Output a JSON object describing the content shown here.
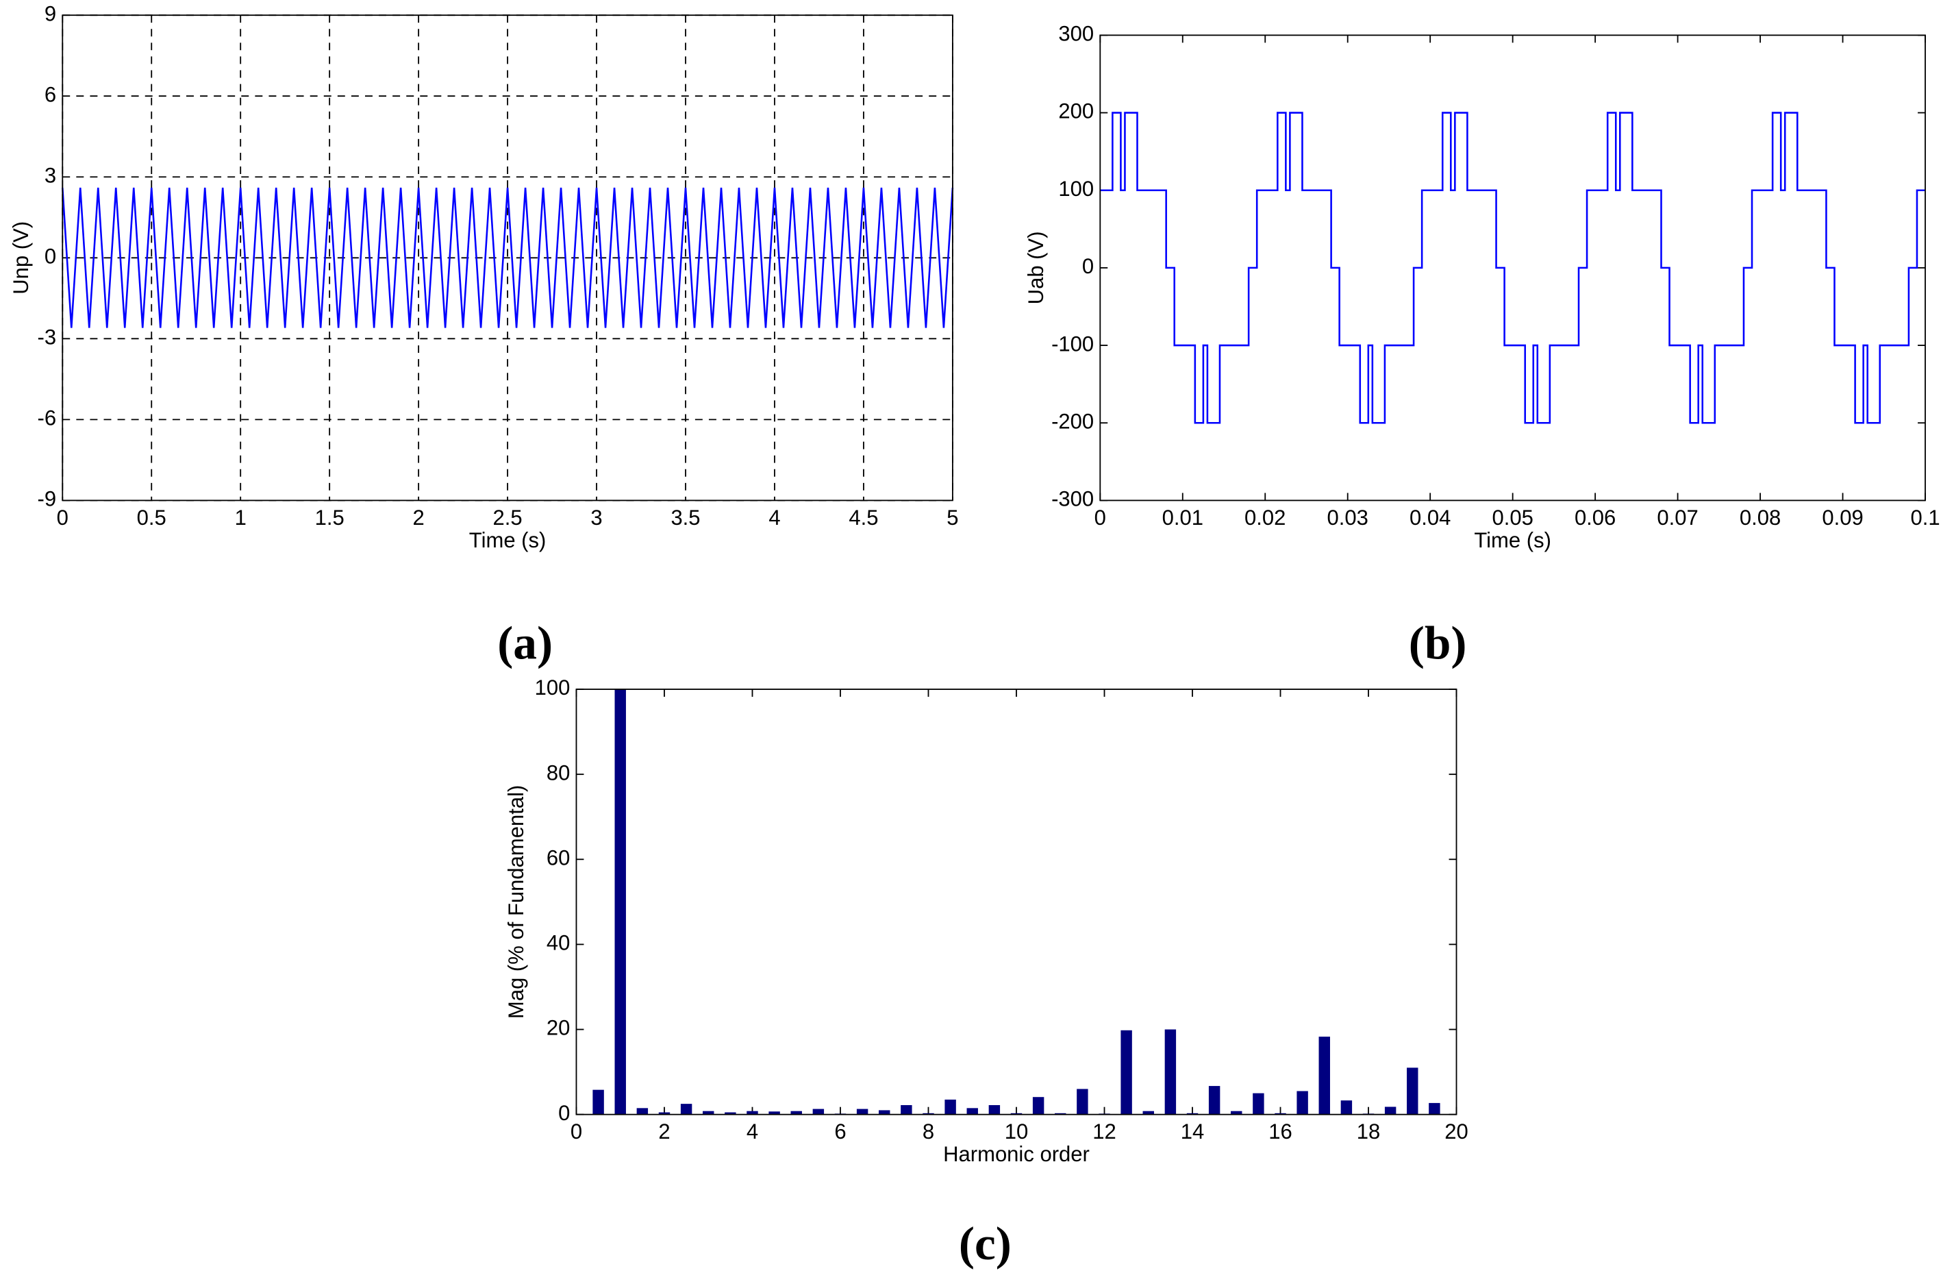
{
  "chart_data": [
    {
      "type": "line",
      "caption": "(a)",
      "xlabel": "Time (s)",
      "ylabel": "Unp (V)",
      "color": "#0000ff",
      "grid": true,
      "xlim": [
        0,
        5
      ],
      "ylim": [
        -9,
        9
      ],
      "xticks": [
        0,
        0.5,
        1,
        1.5,
        2,
        2.5,
        3,
        3.5,
        4,
        4.5,
        5
      ],
      "yticks": [
        -9,
        -6,
        -3,
        0,
        3,
        6,
        9
      ],
      "x": [
        0,
        0.05,
        0.1,
        0.15,
        0.2,
        0.25,
        0.3,
        0.35,
        0.4,
        0.45,
        0.5,
        0.55,
        0.6,
        0.65,
        0.7,
        0.75,
        0.8,
        0.85,
        0.9,
        0.95,
        1,
        1.05,
        1.1,
        1.15,
        1.2,
        1.25,
        1.3,
        1.35,
        1.4,
        1.45,
        1.5,
        1.55,
        1.6,
        1.65,
        1.7,
        1.75,
        1.8,
        1.85,
        1.9,
        1.95,
        2,
        2.05,
        2.1,
        2.15,
        2.2,
        2.25,
        2.3,
        2.35,
        2.4,
        2.45,
        2.5,
        2.55,
        2.6,
        2.65,
        2.7,
        2.75,
        2.8,
        2.85,
        2.9,
        2.95,
        3,
        3.05,
        3.1,
        3.15,
        3.2,
        3.25,
        3.3,
        3.35,
        3.4,
        3.45,
        3.5,
        3.55,
        3.6,
        3.65,
        3.7,
        3.75,
        3.8,
        3.85,
        3.9,
        3.95,
        4,
        4.05,
        4.1,
        4.15,
        4.2,
        4.25,
        4.3,
        4.35,
        4.4,
        4.45,
        4.5,
        4.55,
        4.6,
        4.65,
        4.7,
        4.75,
        4.8,
        4.85,
        4.9,
        4.95,
        5
      ],
      "values": [
        2.6,
        -2.6,
        2.6,
        -2.6,
        2.6,
        -2.6,
        2.6,
        -2.6,
        2.6,
        -2.6,
        2.6,
        -2.6,
        2.6,
        -2.6,
        2.6,
        -2.6,
        2.6,
        -2.6,
        2.6,
        -2.6,
        2.6,
        -2.6,
        2.6,
        -2.6,
        2.6,
        -2.6,
        2.6,
        -2.6,
        2.6,
        -2.6,
        2.6,
        -2.6,
        2.6,
        -2.6,
        2.6,
        -2.6,
        2.6,
        -2.6,
        2.6,
        -2.6,
        2.6,
        -2.6,
        2.6,
        -2.6,
        2.6,
        -2.6,
        2.6,
        -2.6,
        2.6,
        -2.6,
        2.6,
        -2.6,
        2.6,
        -2.6,
        2.6,
        -2.6,
        2.6,
        -2.6,
        2.6,
        -2.6,
        2.6,
        -2.6,
        2.6,
        -2.6,
        2.6,
        -2.6,
        2.6,
        -2.6,
        2.6,
        -2.6,
        2.6,
        -2.6,
        2.6,
        -2.6,
        2.6,
        -2.6,
        2.6,
        -2.6,
        2.6,
        -2.6,
        2.6,
        -2.6,
        2.6,
        -2.6,
        2.6,
        -2.6,
        2.6,
        -2.6,
        2.6,
        -2.6,
        2.6,
        -2.6,
        2.6,
        -2.6,
        2.6,
        -2.6,
        2.6,
        -2.6,
        2.6,
        -2.6,
        2.6
      ]
    },
    {
      "type": "line",
      "caption": "(b)",
      "xlabel": "Time (s)",
      "ylabel": "Uab (V)",
      "color": "#0000ff",
      "grid": false,
      "xlim": [
        0,
        0.1
      ],
      "ylim": [
        -300,
        300
      ],
      "xticks": [
        0,
        0.01,
        0.02,
        0.03,
        0.04,
        0.05,
        0.06,
        0.07,
        0.08,
        0.09,
        0.1
      ],
      "yticks": [
        -300,
        -200,
        -100,
        0,
        100,
        200,
        300
      ],
      "x": [
        0,
        0.0015,
        0.0015,
        0.0025,
        0.0025,
        0.003,
        0.003,
        0.0045,
        0.0045,
        0.008,
        0.008,
        0.009,
        0.009,
        0.0115,
        0.0115,
        0.0125,
        0.0125,
        0.013,
        0.013,
        0.0145,
        0.0145,
        0.018,
        0.018,
        0.019,
        0.019,
        0.02,
        0.0215,
        0.0215,
        0.0225,
        0.0225,
        0.023,
        0.023,
        0.0245,
        0.0245,
        0.028,
        0.028,
        0.029,
        0.029,
        0.0315,
        0.0315,
        0.0325,
        0.0325,
        0.033,
        0.033,
        0.0345,
        0.0345,
        0.038,
        0.038,
        0.039,
        0.039,
        0.04,
        0.0415,
        0.0415,
        0.0425,
        0.0425,
        0.043,
        0.043,
        0.0445,
        0.0445,
        0.048,
        0.048,
        0.049,
        0.049,
        0.0515,
        0.0515,
        0.0525,
        0.0525,
        0.053,
        0.053,
        0.0545,
        0.0545,
        0.058,
        0.058,
        0.059,
        0.059,
        0.06,
        0.0615,
        0.0615,
        0.0625,
        0.0625,
        0.063,
        0.063,
        0.0645,
        0.0645,
        0.068,
        0.068,
        0.069,
        0.069,
        0.0715,
        0.0715,
        0.0725,
        0.0725,
        0.073,
        0.073,
        0.0745,
        0.0745,
        0.078,
        0.078,
        0.079,
        0.079,
        0.08,
        0.0815,
        0.0815,
        0.0825,
        0.0825,
        0.083,
        0.083,
        0.0845,
        0.0845,
        0.088,
        0.088,
        0.089,
        0.089,
        0.0915,
        0.0915,
        0.0925,
        0.0925,
        0.093,
        0.093,
        0.0945,
        0.0945,
        0.098,
        0.098,
        0.099,
        0.099,
        0.1
      ],
      "values": [
        100,
        100,
        200,
        200,
        100,
        100,
        200,
        200,
        100,
        100,
        0,
        0,
        -100,
        -100,
        -200,
        -200,
        -100,
        -100,
        -200,
        -200,
        -100,
        -100,
        0,
        0,
        100,
        100,
        100,
        200,
        200,
        100,
        100,
        200,
        200,
        100,
        100,
        0,
        0,
        -100,
        -100,
        -200,
        -200,
        -100,
        -100,
        -200,
        -200,
        -100,
        -100,
        0,
        0,
        100,
        100,
        100,
        200,
        200,
        100,
        100,
        200,
        200,
        100,
        100,
        0,
        0,
        -100,
        -100,
        -200,
        -200,
        -100,
        -100,
        -200,
        -200,
        -100,
        -100,
        0,
        0,
        100,
        100,
        100,
        200,
        200,
        100,
        100,
        200,
        200,
        100,
        100,
        0,
        0,
        -100,
        -100,
        -200,
        -200,
        -100,
        -100,
        -200,
        -200,
        -100,
        -100,
        0,
        0,
        100,
        100,
        100,
        200,
        200,
        100,
        100,
        200,
        200,
        100,
        100,
        0,
        0,
        -100,
        -100,
        -200,
        -200,
        -100,
        -100,
        -200,
        -200,
        -100,
        -100,
        0,
        0,
        100,
        100
      ]
    },
    {
      "type": "bar",
      "caption": "(c)",
      "xlabel": "Harmonic order",
      "ylabel": "Mag (% of Fundamental)",
      "color": "#000080",
      "grid": false,
      "xlim": [
        0,
        20
      ],
      "ylim": [
        0,
        100
      ],
      "xticks": [
        0,
        2,
        4,
        6,
        8,
        10,
        12,
        14,
        16,
        18,
        20
      ],
      "yticks": [
        0,
        20,
        40,
        60,
        80,
        100
      ],
      "x": [
        0.5,
        1,
        1.5,
        2,
        2.5,
        3,
        3.5,
        4,
        4.5,
        5,
        5.5,
        6,
        6.5,
        7,
        7.5,
        8,
        8.5,
        9,
        9.5,
        10,
        10.5,
        11,
        11.5,
        12,
        12.5,
        13,
        13.5,
        14,
        14.5,
        15,
        15.5,
        16,
        16.5,
        17,
        17.5,
        18,
        18.5,
        19,
        19.5
      ],
      "values": [
        5.8,
        100,
        1.5,
        0.5,
        2.5,
        0.8,
        0.5,
        0.8,
        0.7,
        0.8,
        1.3,
        0.2,
        1.3,
        1,
        2.2,
        0.3,
        3.5,
        1.5,
        2.2,
        0.3,
        4.1,
        0.3,
        6,
        0.2,
        19.8,
        0.8,
        20,
        0.3,
        6.7,
        0.8,
        5,
        0.3,
        5.5,
        18.3,
        3.3,
        0.2,
        1.8,
        11,
        2.7
      ]
    }
  ]
}
